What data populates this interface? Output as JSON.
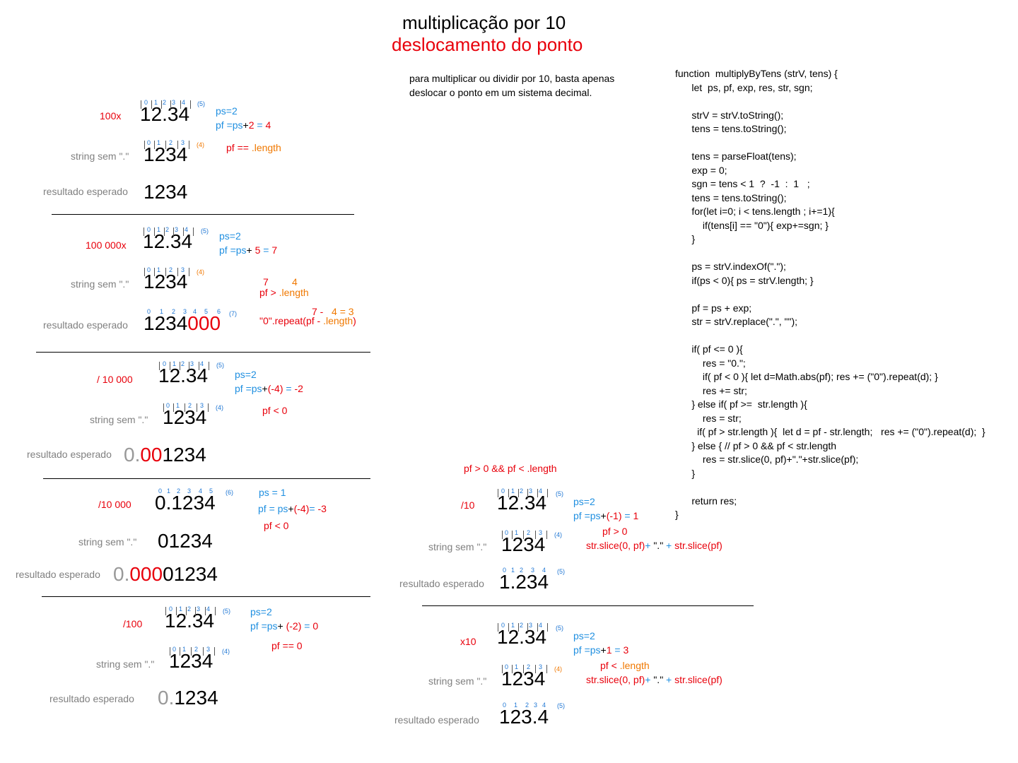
{
  "title": "multiplicação por 10",
  "subtitle": "deslocamento do ponto",
  "description": [
    "para multiplicar ou dividir por 10, basta apenas",
    "deslocar o ponto em um sistema decimal."
  ],
  "code": [
    "function  multiplyByTens (strV, tens) {",
    "      let  ps, pf, exp, res, str, sgn;",
    "",
    "      strV = strV.toString();",
    "      tens = tens.toString();",
    "",
    "      tens = parseFloat(tens);",
    "      exp = 0;",
    "      sgn = tens < 1  ?  -1  :  1   ;",
    "      tens = tens.toString();",
    "      for(let i=0; i < tens.length ; i+=1){",
    "          if(tens[i] == \"0\"){ exp+=sgn; }",
    "      }",
    "",
    "      ps = strV.indexOf(\".\");",
    "      if(ps < 0){ ps = strV.length; }",
    "",
    "      pf = ps + exp;",
    "      str = strV.replace(\".\", \"\");",
    "",
    "      if( pf <= 0 ){",
    "          res = \"0.\";",
    "          if( pf < 0 ){ let d=Math.abs(pf); res += (\"0\").repeat(d); }",
    "          res += str;",
    "      } else if( pf >=  str.length ){",
    "          res = str;",
    "        if( pf > str.length ){  let d = pf - str.length;   res += (\"0\").repeat(d);  }",
    "      } else { // pf > 0 && pf < str.length",
    "          res = str.slice(0, pf)+\".\"+str.slice(pf);",
    "      }",
    "",
    "      return res;",
    "}"
  ],
  "labels": {
    "string_sem": "string sem \".\"",
    "resultado": "resultado esperado",
    "condition_mid": "pf > 0 && pf < .length"
  },
  "numbers": {
    "n1234dot": "12.34",
    "n1234": "1234",
    "n01234": "0.1234",
    "n01234b": "01234",
    "r_1234000_a": "1234",
    "r_1234000_b": "000",
    "r_0001234_a": "0.",
    "r_0001234_b": "00",
    "r_0001234_c": "1234",
    "r_00001234_a": "0.",
    "r_00001234_b": "000",
    "r_00001234_c": "01234",
    "r_01234_a": "0.",
    "r_01234_b": "1234",
    "r_1234_dec": "1.234",
    "r_1234_x10": "123.4"
  },
  "indices": {
    "i5": [
      "0",
      "1",
      "2",
      "3",
      "4"
    ],
    "i4": [
      "0",
      "1",
      "2",
      "3"
    ],
    "i7": [
      "0",
      "1",
      "2",
      "3",
      "4",
      "5",
      "6"
    ],
    "i6": [
      "0",
      "1",
      "2",
      "3",
      "4",
      "5"
    ]
  },
  "counts": {
    "c5": "(5)",
    "c4": "(4)",
    "c7": "(7)",
    "c6": "(6)"
  },
  "sections": {
    "s1": {
      "label": "100x",
      "ps": "ps=2",
      "pf_a": "pf =ps",
      "pf_b": "+",
      "pf_c": "2",
      "pf_d": " = ",
      "pf_e": "4",
      "cond_a": "pf == ",
      "cond_b": ".length"
    },
    "s2": {
      "label": "100 000x",
      "ps": "ps=2",
      "pf_a": "pf =ps",
      "pf_b": "+ ",
      "pf_c": "5",
      "pf_d": " = ",
      "pf_e": "7",
      "n7": "7",
      "n4": "4",
      "cond_a": "pf > ",
      "cond_b": ".length",
      "eq_a": "7  -",
      "eq_b": "4 = 3",
      "rep_a": "\"0\".repeat(pf - ",
      "rep_b": ".length",
      "rep_c": ")"
    },
    "s3": {
      "label": "/ 10 000",
      "ps": "ps=2",
      "pf_a": "pf =ps",
      "pf_b": "+",
      "pf_c": "(-4)",
      "pf_d": " =  ",
      "pf_e": "-2",
      "cond": "pf < 0"
    },
    "s4": {
      "label": "/10 000",
      "ps": "ps = 1",
      "pf_a": "pf = ps",
      "pf_b": "+",
      "pf_c": "(-4)",
      "pf_d": "= ",
      "pf_e": "-3",
      "cond": "pf < 0"
    },
    "s5": {
      "label": "/100",
      "ps": "ps=2",
      "pf_a": "pf =ps",
      "pf_b": "+ ",
      "pf_c": "(-2)",
      "pf_d": " = ",
      "pf_e": "0",
      "cond": "pf == 0"
    },
    "s6": {
      "label": "/10",
      "ps": "ps=2",
      "pf_a": "pf =ps",
      "pf_b": "+",
      "pf_c": "(-1)",
      "pf_d": "  =  ",
      "pf_e": "1",
      "cond": "pf > 0",
      "sl_a": "str.slice(0, pf)",
      "sl_b": "+ ",
      "sl_c": "\".\"",
      "sl_d": " + ",
      "sl_e": "str.slice(pf)"
    },
    "s7": {
      "label": "x10",
      "ps": "ps=2",
      "pf_a": "pf =ps",
      "pf_b": "+",
      "pf_c": "1",
      "pf_d": " = ",
      "pf_e": "3",
      "cond_a": "pf < ",
      "cond_b": ".length",
      "sl_a": "str.slice(0, pf)",
      "sl_b": "+ ",
      "sl_c": "\".\"",
      "sl_d": " + ",
      "sl_e": "str.slice(pf)"
    }
  },
  "colors": {
    "red": "#e8000b",
    "blue": "#1f8fe0",
    "orange": "#f07800",
    "gray": "#808080"
  }
}
